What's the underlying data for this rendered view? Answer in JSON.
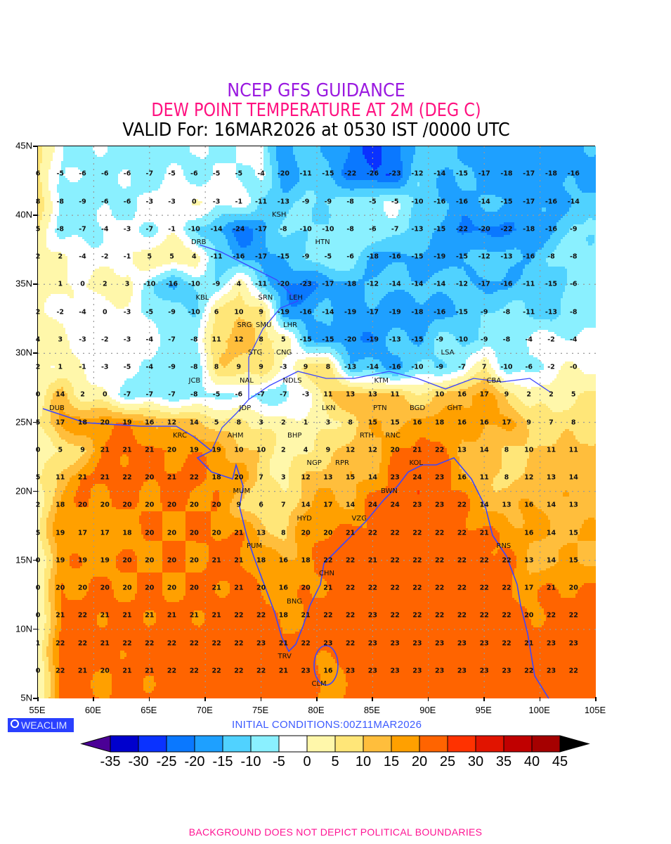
{
  "header": {
    "line1": "NCEP GFS GUIDANCE",
    "line2": "DEW POINT TEMPERATURE AT 2M (DEG C)",
    "line3": "VALID For: 16MAR2026 at 0530 IST /0000 UTC"
  },
  "axes": {
    "lat_labels": [
      "45N",
      "40N",
      "35N",
      "30N",
      "25N",
      "20N",
      "15N",
      "10N",
      "5N"
    ],
    "lat_values": [
      45,
      40,
      35,
      30,
      25,
      20,
      15,
      10,
      5
    ],
    "lon_labels": [
      "55E",
      "60E",
      "65E",
      "70E",
      "75E",
      "80E",
      "85E",
      "90E",
      "95E",
      "100E",
      "105E"
    ],
    "lon_values": [
      55,
      60,
      65,
      70,
      75,
      80,
      85,
      90,
      95,
      100,
      105
    ]
  },
  "grid": {
    "lon_start": 55,
    "lon_step": 2,
    "lat_start": 43,
    "lat_step": -2,
    "rows": [
      [
        "6",
        "-5",
        "-6",
        "-6",
        "-6",
        "-7",
        "-5",
        "-6",
        "-5",
        "-5",
        "-4",
        "-20",
        "-11",
        "-15",
        "-22",
        "-26",
        "-23",
        "-12",
        "-14",
        "-15",
        "-17",
        "-18",
        "-17",
        "-18",
        "-16"
      ],
      [
        "8",
        "-8",
        "-9",
        "-6",
        "-6",
        "-3",
        "-3",
        "0",
        "-3",
        "-1",
        "-11",
        "-13",
        "-9",
        "-9",
        "-8",
        "-5",
        "-5",
        "-10",
        "-16",
        "-16",
        "-14",
        "-15",
        "-17",
        "-16",
        "-14"
      ],
      [
        "5",
        "-8",
        "-7",
        "-4",
        "-3",
        "-7",
        "-1",
        "-10",
        "-14",
        "-24",
        "-17",
        "-8",
        "-10",
        "-10",
        "-8",
        "-6",
        "-7",
        "-13",
        "-15",
        "-22",
        "-20",
        "-22",
        "-18",
        "-16",
        "-9"
      ],
      [
        "2",
        "2",
        "-4",
        "-2",
        "-1",
        "5",
        "5",
        "4",
        "-11",
        "-16",
        "-17",
        "-15",
        "-9",
        "-5",
        "-6",
        "-18",
        "-16",
        "-15",
        "-19",
        "-15",
        "-12",
        "-13",
        "-16",
        "-8",
        "-8"
      ],
      [
        "",
        "1",
        "0",
        "2",
        "3",
        "-10",
        "-16",
        "-10",
        "-9",
        "4",
        "-11",
        "-20",
        "-23",
        "-17",
        "-18",
        "-12",
        "-14",
        "-14",
        "-14",
        "-12",
        "-17",
        "-16",
        "-11",
        "-15",
        "-6"
      ],
      [
        "2",
        "-2",
        "-4",
        "0",
        "-3",
        "-5",
        "-9",
        "-10",
        "6",
        "10",
        "9",
        "-19",
        "-16",
        "-14",
        "-19",
        "-17",
        "-19",
        "-18",
        "-16",
        "-15",
        "-9",
        "-8",
        "-11",
        "-13",
        "-8"
      ],
      [
        "4",
        "3",
        "-3",
        "-2",
        "-3",
        "-4",
        "-7",
        "-8",
        "11",
        "12",
        "8",
        "5",
        "-15",
        "-15",
        "-20",
        "-19",
        "-13",
        "-15",
        "-9",
        "-10",
        "-9",
        "-8",
        "-4",
        "-2",
        "-4"
      ],
      [
        "2",
        "1",
        "-1",
        "-3",
        "-5",
        "-4",
        "-9",
        "-8",
        "8",
        "9",
        "9",
        "-3",
        "9",
        "8",
        "-13",
        "-14",
        "-16",
        "-10",
        "-9",
        "-7",
        "7",
        "-10",
        "-6",
        "-2",
        "-0"
      ],
      [
        "0",
        "14",
        "2",
        "0",
        "-7",
        "-7",
        "-7",
        "-8",
        "-5",
        "-6",
        "-7",
        "-7",
        "-3",
        "11",
        "13",
        "13",
        "11",
        "",
        "10",
        "16",
        "17",
        "9",
        "2",
        "2",
        "5"
      ],
      [
        "5",
        "17",
        "18",
        "20",
        "19",
        "16",
        "12",
        "14",
        "5",
        "8",
        "3",
        "2",
        "1",
        "3",
        "8",
        "15",
        "15",
        "16",
        "18",
        "16",
        "16",
        "17",
        "9",
        "7",
        "8"
      ],
      [
        "0",
        "5",
        "9",
        "21",
        "21",
        "21",
        "20",
        "19",
        "19",
        "10",
        "10",
        "2",
        "4",
        "9",
        "12",
        "12",
        "20",
        "21",
        "22",
        "13",
        "14",
        "8",
        "10",
        "11",
        "11"
      ],
      [
        "5",
        "11",
        "21",
        "21",
        "22",
        "20",
        "21",
        "22",
        "18",
        "20",
        "7",
        "3",
        "12",
        "13",
        "15",
        "14",
        "23",
        "24",
        "23",
        "16",
        "11",
        "8",
        "12",
        "13",
        "14"
      ],
      [
        "2",
        "18",
        "20",
        "20",
        "20",
        "20",
        "20",
        "20",
        "20",
        "9",
        "6",
        "7",
        "14",
        "17",
        "14",
        "24",
        "24",
        "23",
        "23",
        "22",
        "14",
        "13",
        "16",
        "14",
        "13"
      ],
      [
        "5",
        "19",
        "17",
        "17",
        "18",
        "20",
        "20",
        "20",
        "20",
        "21",
        "13",
        "8",
        "20",
        "20",
        "21",
        "22",
        "22",
        "22",
        "22",
        "22",
        "21",
        "",
        "16",
        "14",
        "15"
      ],
      [
        "0",
        "19",
        "19",
        "19",
        "20",
        "20",
        "20",
        "20",
        "21",
        "21",
        "18",
        "16",
        "18",
        "22",
        "22",
        "21",
        "22",
        "22",
        "22",
        "22",
        "22",
        "22",
        "13",
        "14",
        "15"
      ],
      [
        "0",
        "20",
        "20",
        "20",
        "20",
        "20",
        "20",
        "20",
        "21",
        "21",
        "20",
        "16",
        "20",
        "21",
        "22",
        "22",
        "22",
        "22",
        "22",
        "22",
        "22",
        "22",
        "17",
        "21",
        "20"
      ],
      [
        "0",
        "21",
        "22",
        "21",
        "21",
        "21",
        "21",
        "21",
        "21",
        "22",
        "22",
        "18",
        "21",
        "22",
        "22",
        "23",
        "22",
        "22",
        "22",
        "22",
        "22",
        "22",
        "20",
        "22",
        "22"
      ],
      [
        "1",
        "22",
        "22",
        "21",
        "22",
        "22",
        "22",
        "22",
        "22",
        "22",
        "23",
        "21",
        "22",
        "23",
        "22",
        "23",
        "23",
        "23",
        "23",
        "23",
        "23",
        "22",
        "21",
        "23",
        "23"
      ],
      [
        "0",
        "22",
        "21",
        "20",
        "21",
        "21",
        "22",
        "22",
        "22",
        "22",
        "22",
        "21",
        "23",
        "16",
        "23",
        "23",
        "23",
        "23",
        "23",
        "23",
        "23",
        "23",
        "22",
        "23",
        "22"
      ]
    ]
  },
  "stations": [
    "KSH",
    "DRB",
    "HTN",
    "KBL",
    "SRN",
    "LEH",
    "SMU",
    "SRG",
    "LHR",
    "CNG",
    "STG",
    "NAL",
    "JCB",
    "NDLS",
    "LSA",
    "KTM",
    "LKN",
    "JDP",
    "BGD",
    "GHT",
    "CBA",
    "DUB",
    "KRC",
    "PTN",
    "RTH",
    "BHP",
    "RNC",
    "AHM",
    "KOL",
    "NGP",
    "RPR",
    "BWN",
    "MUM",
    "HYD",
    "VZG",
    "RNS",
    "PUM",
    "CHN",
    "BNG",
    "TRV",
    "CLM"
  ],
  "colorbar": {
    "levels": [
      "-35",
      "-30",
      "-25",
      "-20",
      "-15",
      "-10",
      "-5",
      "0",
      "5",
      "10",
      "15",
      "20",
      "25",
      "30",
      "35",
      "40",
      "45"
    ],
    "colors": [
      "#4b0096",
      "#0000cd",
      "#0a32ff",
      "#0a78ff",
      "#1ea0ff",
      "#50d2ff",
      "#8af0ff",
      "#ffffff",
      "#fff7aa",
      "#ffe678",
      "#ffbe3c",
      "#ffa000",
      "#ff6400",
      "#ff3200",
      "#e11400",
      "#c00000",
      "#a50000",
      "#000000"
    ]
  },
  "branding": {
    "logo": "WEACLIM"
  },
  "initial_conditions": "INITIAL  CONDITIONS:00Z11MAR2026",
  "footer": "BACKGROUND DOES NOT DEPICT POLITICAL BOUNDARIES",
  "coast_color": "#3c46ff"
}
